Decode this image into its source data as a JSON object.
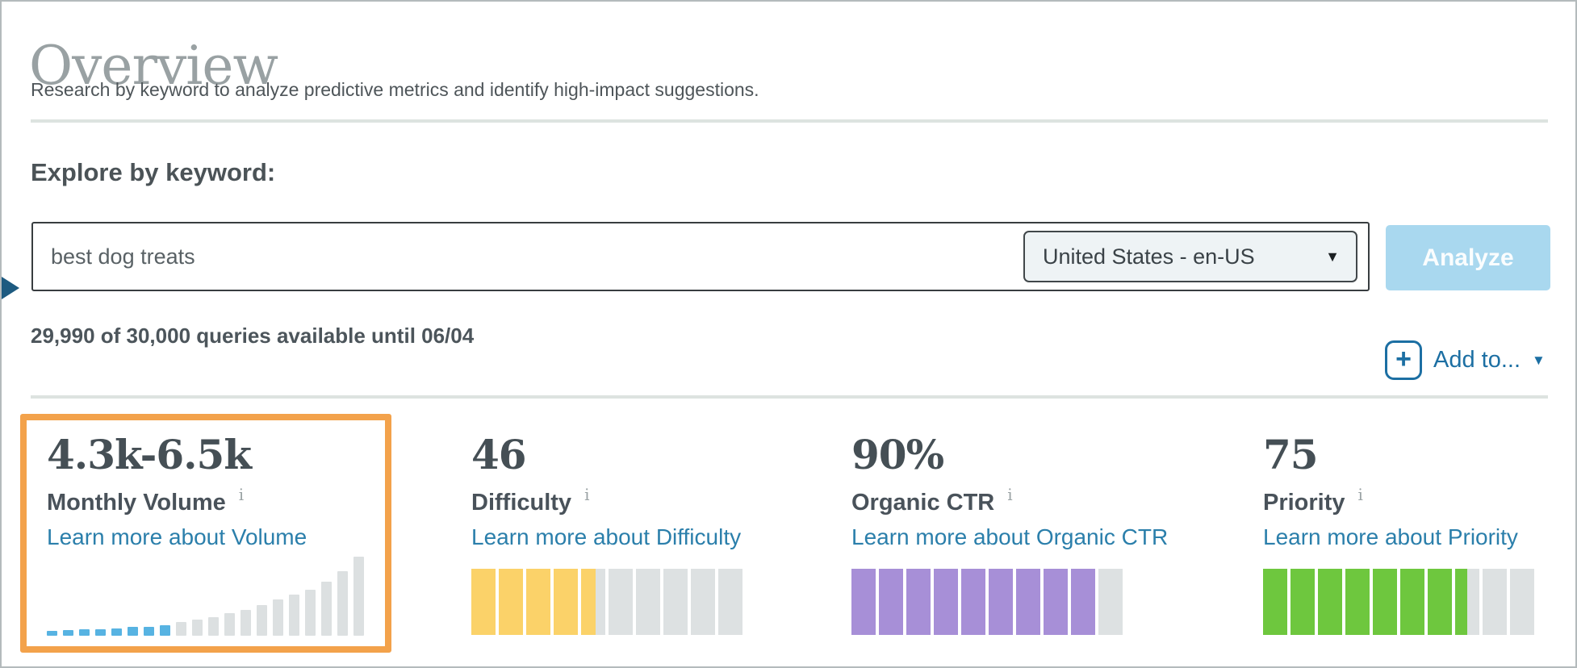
{
  "header": {
    "title": "Overview",
    "subtitle": "Research by keyword to analyze predictive metrics and identify high-impact suggestions."
  },
  "explore": {
    "heading": "Explore by keyword:",
    "keyword_value": "best dog treats",
    "locale_selected": "United States - en-US",
    "select_caret_glyph": "▼",
    "analyze_label": "Analyze",
    "quota_text": "29,990 of 30,000 queries available until 06/04",
    "plus_glyph": "+",
    "add_to_label": "Add to...",
    "add_to_caret_glyph": "▼"
  },
  "metrics": [
    {
      "value": "4.3k-6.5k",
      "label": "Monthly Volume",
      "info_icon": "i",
      "link_label": "Learn more about Volume",
      "highlighted": true,
      "chart_index": 0
    },
    {
      "value": "46",
      "label": "Difficulty",
      "info_icon": "i",
      "link_label": "Learn more about Difficulty",
      "highlighted": false,
      "chart_index": 1
    },
    {
      "value": "90%",
      "label": "Organic CTR",
      "info_icon": "i",
      "link_label": "Learn more about Organic CTR",
      "highlighted": false,
      "chart_index": 2
    },
    {
      "value": "75",
      "label": "Priority",
      "info_icon": "i",
      "link_label": "Learn more about Priority",
      "highlighted": false,
      "chart_index": 3
    }
  ],
  "chart_data": [
    {
      "type": "bar",
      "name": "monthly-volume-sparkline",
      "values": [
        6,
        7,
        8,
        8,
        9,
        11,
        11,
        13,
        17,
        20,
        23,
        28,
        32,
        38,
        45,
        51,
        57,
        67,
        80,
        98
      ],
      "ylim": [
        0,
        98
      ],
      "highlighted_bars": 8,
      "highlight_color": "#57b3e2",
      "bar_color": "#dce0e1",
      "axes": "off",
      "legend": "off"
    },
    {
      "type": "gauge",
      "name": "difficulty-gauge",
      "segments": 10,
      "value": 46,
      "max": 100,
      "fill_color": "#fbd269",
      "track_color": "#dde1e2"
    },
    {
      "type": "gauge",
      "name": "organic-ctr-gauge",
      "segments": 10,
      "value": 90,
      "max": 100,
      "fill_color": "#a78fd7",
      "track_color": "#dde1e2"
    },
    {
      "type": "gauge",
      "name": "priority-gauge",
      "segments": 10,
      "value": 75,
      "max": 100,
      "fill_color": "#6ec73e",
      "track_color": "#dde1e2"
    }
  ],
  "colors": {
    "accent_orange": "#f3a24b",
    "link_blue": "#2b7fab",
    "action_blue": "#1c6fa3",
    "analyze_button_bg": "#a9d8ef",
    "pointer_navy": "#1d5a80"
  }
}
